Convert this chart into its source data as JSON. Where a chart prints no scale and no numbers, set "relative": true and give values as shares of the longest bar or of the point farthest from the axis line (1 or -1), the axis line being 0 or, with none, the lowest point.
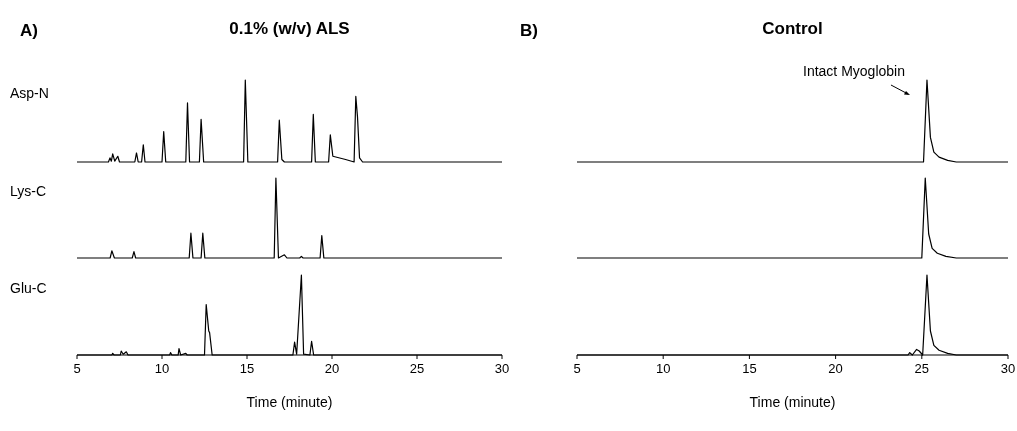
{
  "chart_data": [
    {
      "type": "line",
      "title": "0.1% (w/v) ALS",
      "annotations": [
        "A)"
      ],
      "ylabel": "Asp-N",
      "relative": true,
      "tick_labels": false,
      "xlim": [
        5,
        30
      ],
      "color": "#000000",
      "x": [
        5,
        6.85,
        6.94,
        7.02,
        7.1,
        7.22,
        7.4,
        7.5,
        8.4,
        8.5,
        8.6,
        8.8,
        8.9,
        9.0,
        10.0,
        10.1,
        10.22,
        11.4,
        11.5,
        11.62,
        12.2,
        12.3,
        12.45,
        14.8,
        14.9,
        15.05,
        16.8,
        16.9,
        17.05,
        17.2,
        18.8,
        18.9,
        19.02,
        19.8,
        19.9,
        20.05,
        20.8,
        21.3,
        21.4,
        21.5,
        21.62,
        21.8,
        30
      ],
      "values": [
        0,
        0,
        0.05,
        0.01,
        0.1,
        0.01,
        0.07,
        0,
        0,
        0.11,
        0,
        0,
        0.21,
        0,
        0,
        0.37,
        0,
        0,
        0.72,
        0,
        0,
        0.52,
        0,
        0,
        1,
        0,
        0,
        0.51,
        0.03,
        0,
        0,
        0.58,
        0,
        0,
        0.33,
        0.07,
        0.03,
        0,
        0.8,
        0.55,
        0.05,
        0,
        0
      ]
    },
    {
      "type": "line",
      "ylabel": "Lys-C",
      "relative": true,
      "tick_labels": false,
      "xlim": [
        5,
        30
      ],
      "color": "#000000",
      "x": [
        5,
        6.95,
        7.05,
        7.2,
        8.25,
        8.35,
        8.45,
        11.6,
        11.7,
        11.82,
        12.3,
        12.4,
        12.52,
        16.6,
        16.7,
        16.85,
        17.2,
        17.35,
        18.1,
        18.2,
        18.3,
        19.3,
        19.4,
        19.52,
        30
      ],
      "values": [
        0,
        0,
        0.09,
        0,
        0,
        0.08,
        0,
        0,
        0.31,
        0,
        0,
        0.31,
        0,
        0,
        1,
        0,
        0.04,
        0,
        0,
        0.02,
        0,
        0,
        0.28,
        0,
        0
      ]
    },
    {
      "type": "line",
      "ylabel": "Glu-C",
      "xlabel": "Time (minute)",
      "relative": true,
      "tick_labels": "x",
      "xlim": [
        5,
        30
      ],
      "xticks": [
        5,
        10,
        15,
        20,
        25,
        30
      ],
      "color": "#000000",
      "x": [
        5,
        7.05,
        7.1,
        7.18,
        7.55,
        7.6,
        7.72,
        7.9,
        8.0,
        10.45,
        10.5,
        10.58,
        10.95,
        11.0,
        11.1,
        11.4,
        11.48,
        12.5,
        12.6,
        12.75,
        12.8,
        12.95,
        17.7,
        17.8,
        17.92,
        18.2,
        18.33,
        18.7,
        18.8,
        18.92,
        30
      ],
      "values": [
        0,
        0,
        0.02,
        0,
        0,
        0.05,
        0.01,
        0.04,
        0,
        0,
        0.03,
        0,
        0,
        0.08,
        0,
        0.02,
        0,
        0,
        0.63,
        0.3,
        0.28,
        0,
        0,
        0.16,
        0.01,
        1,
        0.01,
        0,
        0.17,
        0,
        0
      ]
    },
    {
      "type": "line",
      "title": "Control",
      "annotations": [
        "B)",
        {
          "text": "Intact Myoglobin",
          "x": 25.3,
          "y": 1
        }
      ],
      "relative": true,
      "tick_labels": false,
      "xlim": [
        5,
        30
      ],
      "color": "#000000",
      "x": [
        5,
        25.1,
        25.3,
        25.5,
        25.7,
        26,
        26.5,
        27,
        30
      ],
      "values": [
        0,
        0,
        1,
        0.3,
        0.12,
        0.06,
        0.02,
        0,
        0
      ]
    },
    {
      "type": "line",
      "relative": true,
      "tick_labels": false,
      "xlim": [
        5,
        30
      ],
      "color": "#000000",
      "x": [
        5,
        25.0,
        25.2,
        25.4,
        25.6,
        25.9,
        26.4,
        27,
        30
      ],
      "values": [
        0,
        0,
        1,
        0.3,
        0.12,
        0.06,
        0.02,
        0,
        0
      ]
    },
    {
      "type": "line",
      "xlabel": "Time (minute)",
      "relative": true,
      "tick_labels": "x",
      "xlim": [
        5,
        30
      ],
      "xticks": [
        5,
        10,
        15,
        20,
        25,
        30
      ],
      "color": "#000000",
      "x": [
        5,
        24.2,
        24.3,
        24.45,
        24.7,
        24.85,
        25.05,
        25.3,
        25.5,
        25.7,
        26,
        26.5,
        27,
        30
      ],
      "values": [
        0,
        0,
        0.03,
        0,
        0.07,
        0.05,
        0,
        1,
        0.3,
        0.12,
        0.06,
        0.02,
        0,
        0
      ]
    }
  ]
}
